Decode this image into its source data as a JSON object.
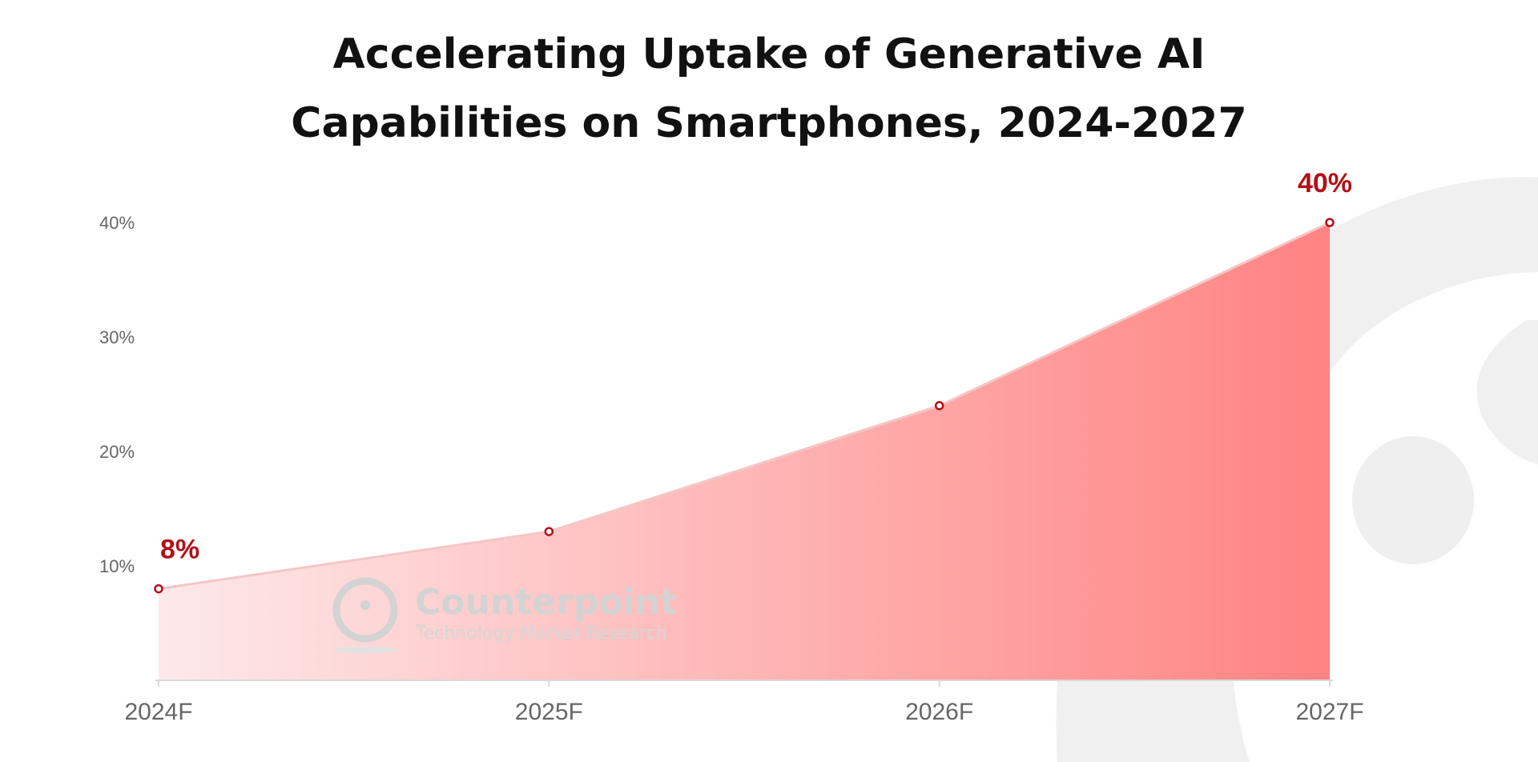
{
  "title_lines": [
    "Accelerating Uptake of Generative AI",
    "Capabilities on Smartphones, 2024-2027"
  ],
  "watermark": {
    "name": "Counterpoint",
    "tagline": "Technology Market Research"
  },
  "colors": {
    "fill_start": "#fde9ea",
    "fill_end": "#ff8382",
    "line": "#f5c6c6",
    "marker": "#b30f17",
    "data_label": "#b30f17",
    "axis": "#d9d9d9",
    "tick_text": "#666666",
    "background_graphic": "#efefef"
  },
  "chart_data": {
    "type": "area",
    "title": "Accelerating Uptake of Generative AI Capabilities on Smartphones, 2024-2027",
    "categories": [
      "2024F",
      "2025F",
      "2026F",
      "2027F"
    ],
    "values": [
      8,
      13,
      24,
      40
    ],
    "unit": "%",
    "ylim": [
      0,
      40
    ],
    "yticks": [
      10,
      20,
      30,
      40
    ],
    "ytick_labels": [
      "10%",
      "20%",
      "30%",
      "40%"
    ],
    "data_labels": [
      {
        "index": 0,
        "text": "8%"
      },
      {
        "index": 3,
        "text": "40%"
      }
    ],
    "grid": false,
    "legend": "none"
  }
}
